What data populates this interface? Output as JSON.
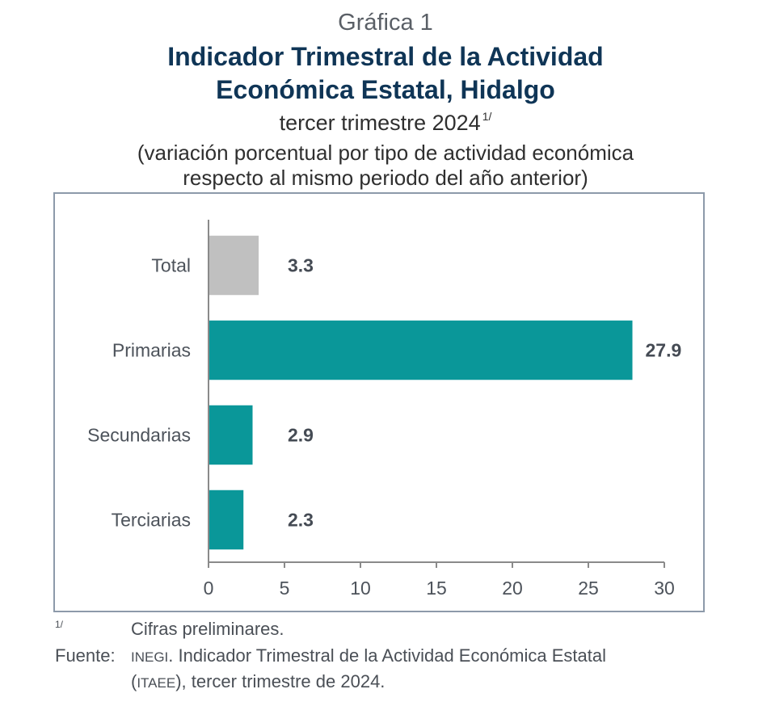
{
  "header": {
    "label": "Gráfica 1",
    "title_line1": "Indicador Trimestral de la Actividad",
    "title_line2": "Económica Estatal, Hidalgo",
    "subtitle": "tercer trimestre 2024",
    "subtitle_note": "1/",
    "description_line1": "(variación porcentual por tipo de actividad económica",
    "description_line2": "respecto al mismo periodo del año anterior)"
  },
  "chart_data": {
    "type": "bar",
    "orientation": "horizontal",
    "categories": [
      "Total",
      "Primarias",
      "Secundarias",
      "Terciarias"
    ],
    "values": [
      3.3,
      27.9,
      2.9,
      2.3
    ],
    "value_labels": [
      "3.3",
      "27.9",
      "2.9",
      "2.3"
    ],
    "bar_colors": [
      "#c0c0c0",
      "#0a9799",
      "#0a9799",
      "#0a9799"
    ],
    "title": "Indicador Trimestral de la Actividad Económica Estatal, Hidalgo",
    "xlabel": "",
    "ylabel": "",
    "xlim": [
      0,
      30
    ],
    "xticks": [
      0,
      5,
      10,
      15,
      20,
      25,
      30
    ],
    "xtick_labels": [
      "0",
      "5",
      "10",
      "15",
      "20",
      "25",
      "30"
    ],
    "grid": false,
    "legend": "none"
  },
  "footer": {
    "note_mark": "1/",
    "note_text": "Cifras preliminares.",
    "source_label": "Fuente:",
    "source_org": "INEGI",
    "source_line1_rest": ". Indicador Trimestral de la Actividad Económica Estatal",
    "source_line2_open": "(",
    "source_abbrev": "ITAEE",
    "source_line2_rest": "), tercer trimestre de 2024."
  }
}
